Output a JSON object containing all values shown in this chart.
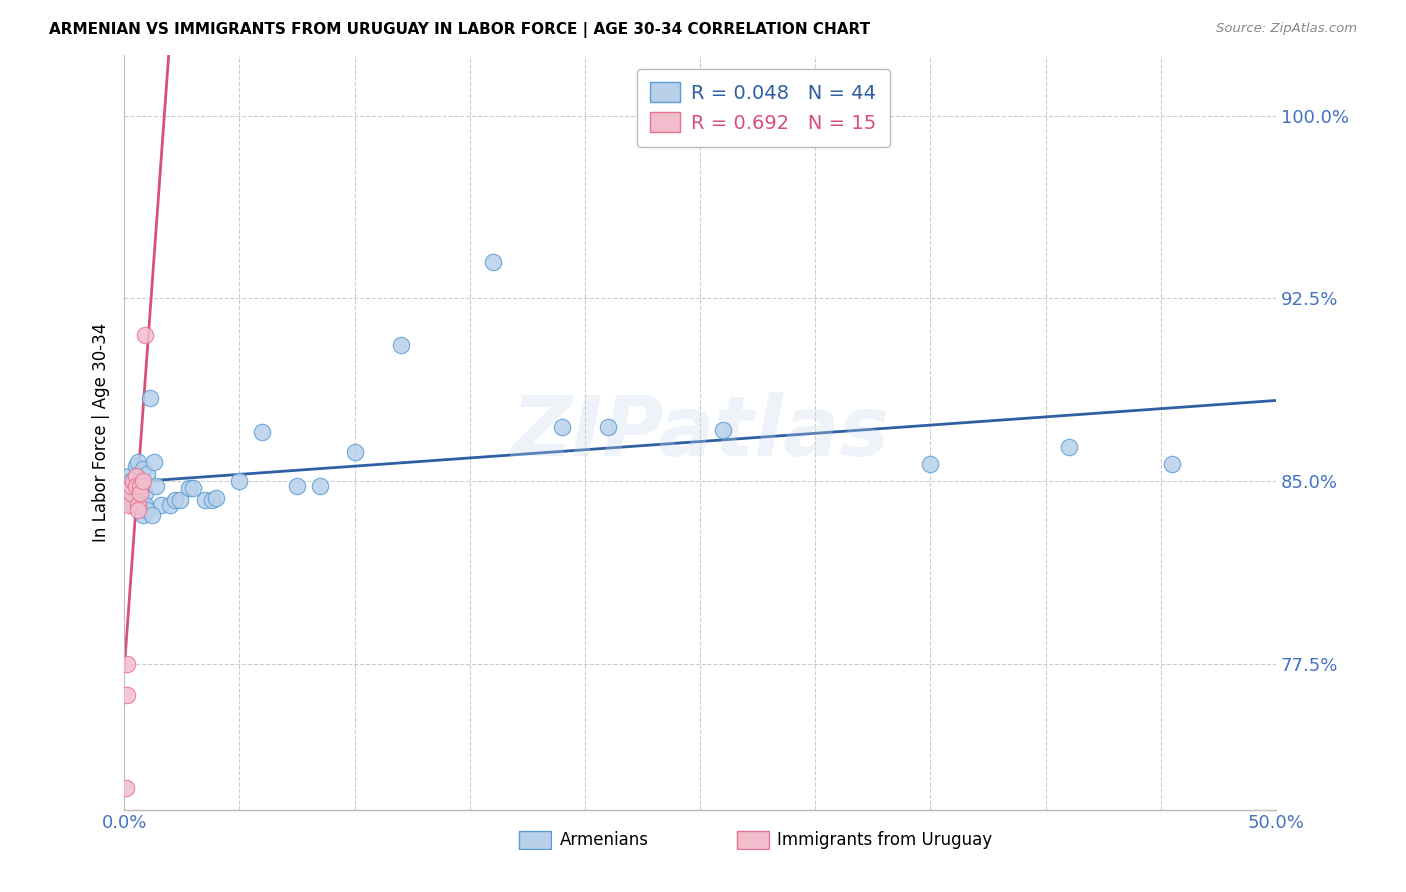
{
  "title": "ARMENIAN VS IMMIGRANTS FROM URUGUAY IN LABOR FORCE | AGE 30-34 CORRELATION CHART",
  "source": "Source: ZipAtlas.com",
  "ylabel": "In Labor Force | Age 30-34",
  "ytick_labels": [
    "77.5%",
    "85.0%",
    "92.5%",
    "100.0%"
  ],
  "ytick_values": [
    0.775,
    0.85,
    0.925,
    1.0
  ],
  "xmin": 0.0,
  "xmax": 0.5,
  "ymin": 0.715,
  "ymax": 1.025,
  "blue_R": "0.048",
  "blue_N": "44",
  "pink_R": "0.692",
  "pink_N": "15",
  "blue_color": "#b8d0ea",
  "blue_edge": "#5b9bd5",
  "pink_color": "#f2bece",
  "pink_edge": "#e8728e",
  "blue_line_color": "#2e5fa3",
  "pink_line_color": "#d94f7a",
  "watermark": "ZIPatlas",
  "blue_scatter_x": [
    0.002,
    0.003,
    0.004,
    0.005,
    0.005,
    0.006,
    0.006,
    0.007,
    0.008,
    0.009,
    0.01,
    0.011,
    0.013,
    0.014,
    0.016,
    0.02,
    0.022,
    0.024,
    0.028,
    0.03,
    0.035,
    0.038,
    0.04,
    0.05,
    0.06,
    0.075,
    0.085,
    0.1,
    0.12,
    0.16,
    0.19,
    0.21,
    0.26,
    0.35,
    0.41,
    0.455,
    0.003,
    0.004,
    0.006,
    0.007,
    0.008,
    0.009,
    0.01,
    0.012
  ],
  "blue_scatter_y": [
    0.852,
    0.85,
    0.848,
    0.856,
    0.848,
    0.852,
    0.858,
    0.85,
    0.855,
    0.845,
    0.853,
    0.884,
    0.858,
    0.848,
    0.84,
    0.84,
    0.842,
    0.842,
    0.847,
    0.847,
    0.842,
    0.842,
    0.843,
    0.85,
    0.87,
    0.848,
    0.848,
    0.862,
    0.906,
    0.94,
    0.872,
    0.872,
    0.871,
    0.857,
    0.864,
    0.857,
    0.842,
    0.84,
    0.84,
    0.839,
    0.836,
    0.84,
    0.838,
    0.836
  ],
  "pink_scatter_x": [
    0.0008,
    0.001,
    0.002,
    0.003,
    0.003,
    0.004,
    0.005,
    0.005,
    0.006,
    0.006,
    0.007,
    0.007,
    0.008,
    0.009,
    0.001
  ],
  "pink_scatter_y": [
    0.724,
    0.762,
    0.84,
    0.845,
    0.848,
    0.85,
    0.852,
    0.848,
    0.84,
    0.838,
    0.848,
    0.845,
    0.85,
    0.91,
    0.775
  ],
  "pink_line_x0": 0.0,
  "pink_line_x1": 0.5,
  "blue_line_x0": 0.0,
  "blue_line_x1": 0.5
}
